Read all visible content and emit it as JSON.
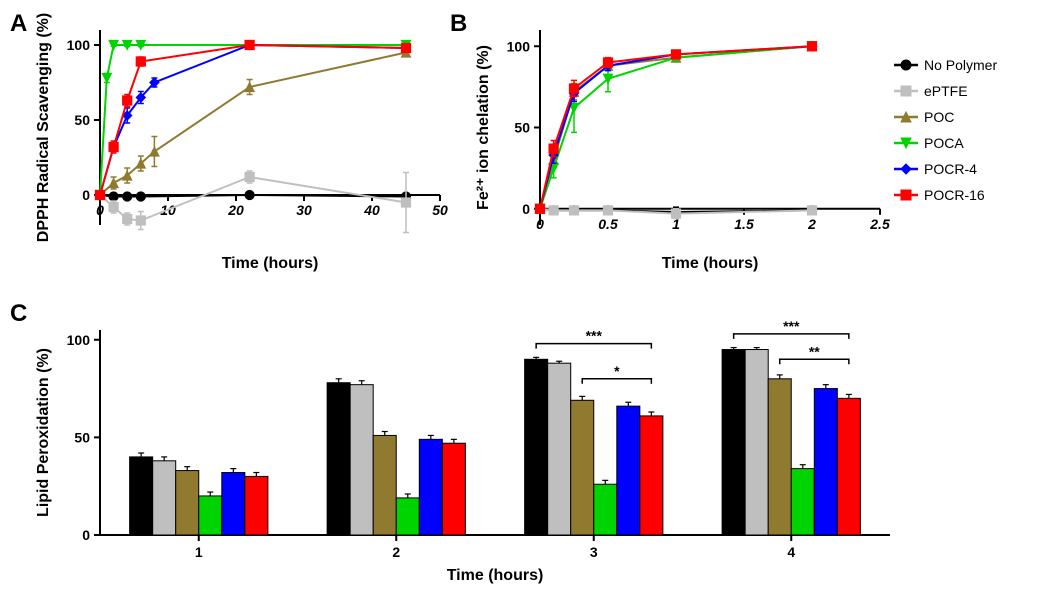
{
  "legend": {
    "items": [
      {
        "label": "No Polymer",
        "color": "#000000",
        "marker": "circle"
      },
      {
        "label": "ePTFE",
        "color": "#bfbfbf",
        "marker": "square"
      },
      {
        "label": "POC",
        "color": "#8f7a2f",
        "marker": "triangle-up"
      },
      {
        "label": "POCA",
        "color": "#00d400",
        "marker": "triangle-down"
      },
      {
        "label": "POCR-4",
        "color": "#0000ff",
        "marker": "diamond"
      },
      {
        "label": "POCR-16",
        "color": "#ff0000",
        "marker": "square"
      }
    ],
    "fontsize": 14
  },
  "panelA": {
    "label": "A",
    "type": "line",
    "title": "",
    "xlabel": "Time (hours)",
    "ylabel": "DPPH Radical Scavenging (%)",
    "xlim": [
      0,
      50
    ],
    "ylim": [
      -20,
      110
    ],
    "xticks": [
      0,
      10,
      20,
      30,
      40,
      50
    ],
    "yticks": [
      0,
      50,
      100
    ],
    "grid": false,
    "line_width": 2,
    "marker_size": 6,
    "background_color": "#ffffff",
    "series": [
      {
        "name": "No Polymer",
        "color": "#000000",
        "marker": "circle",
        "x": [
          0,
          2,
          4,
          6,
          22,
          45
        ],
        "y": [
          0,
          -1,
          -1,
          -1,
          0,
          -1
        ],
        "err": [
          0,
          1,
          1,
          1,
          1,
          2
        ]
      },
      {
        "name": "ePTFE",
        "color": "#bfbfbf",
        "marker": "square",
        "x": [
          0,
          2,
          4,
          6,
          22,
          45
        ],
        "y": [
          0,
          -8,
          -16,
          -17,
          12,
          -5
        ],
        "err": [
          0,
          4,
          4,
          6,
          4,
          20
        ]
      },
      {
        "name": "POC",
        "color": "#8f7a2f",
        "marker": "triangle-up",
        "x": [
          0,
          2,
          4,
          6,
          8,
          22,
          45
        ],
        "y": [
          0,
          8,
          13,
          21,
          29,
          72,
          95
        ],
        "err": [
          0,
          4,
          5,
          5,
          10,
          5,
          2
        ]
      },
      {
        "name": "POCA",
        "color": "#00d400",
        "marker": "triangle-down",
        "x": [
          0,
          1,
          2,
          4,
          6,
          22,
          45
        ],
        "y": [
          0,
          78,
          100,
          100,
          100,
          100,
          100
        ],
        "err": [
          0,
          3,
          1,
          1,
          1,
          1,
          1
        ]
      },
      {
        "name": "POCR-4",
        "color": "#0000ff",
        "marker": "diamond",
        "x": [
          0,
          2,
          4,
          6,
          8,
          22,
          45
        ],
        "y": [
          0,
          32,
          53,
          65,
          75,
          100,
          98
        ],
        "err": [
          0,
          3,
          5,
          4,
          3,
          1,
          1
        ]
      },
      {
        "name": "POCR-16",
        "color": "#ff0000",
        "marker": "square",
        "x": [
          0,
          2,
          4,
          6,
          22,
          45
        ],
        "y": [
          0,
          32,
          63,
          89,
          100,
          98
        ],
        "err": [
          0,
          4,
          4,
          3,
          1,
          1
        ]
      }
    ]
  },
  "panelB": {
    "label": "B",
    "type": "line",
    "title": "",
    "xlabel": "Time (hours)",
    "ylabel": "Fe²⁺ ion chelation (%)",
    "ylabel_sup": "2+",
    "xlim": [
      0,
      2.5
    ],
    "ylim": [
      -10,
      110
    ],
    "xticks": [
      0,
      0.5,
      1.0,
      1.5,
      2.0,
      2.5
    ],
    "yticks": [
      0,
      50,
      100
    ],
    "grid": false,
    "line_width": 2,
    "marker_size": 6,
    "background_color": "#ffffff",
    "series": [
      {
        "name": "No Polymer",
        "color": "#000000",
        "marker": "circle",
        "x": [
          0,
          0.1,
          0.25,
          0.5,
          1.0,
          2.0
        ],
        "y": [
          0,
          -1,
          -1,
          -1,
          -2,
          -1
        ],
        "err": [
          0,
          1,
          1,
          1,
          3,
          2
        ]
      },
      {
        "name": "ePTFE",
        "color": "#bfbfbf",
        "marker": "square",
        "x": [
          0,
          0.1,
          0.25,
          0.5,
          1.0,
          2.0
        ],
        "y": [
          0,
          -1,
          -1,
          -1,
          -3,
          -1
        ],
        "err": [
          0,
          1,
          1,
          1,
          3,
          2
        ]
      },
      {
        "name": "POC",
        "color": "#8f7a2f",
        "marker": "triangle-up",
        "x": [
          0,
          0.1,
          0.25,
          0.5,
          1.0,
          2.0
        ],
        "y": [
          0,
          30,
          72,
          88,
          93,
          100
        ],
        "err": [
          0,
          5,
          5,
          3,
          2,
          1
        ]
      },
      {
        "name": "POCA",
        "color": "#00d400",
        "marker": "triangle-down",
        "x": [
          0,
          0.1,
          0.25,
          0.5,
          1.0,
          2.0
        ],
        "y": [
          0,
          25,
          62,
          80,
          93,
          100
        ],
        "err": [
          0,
          6,
          15,
          8,
          2,
          1
        ]
      },
      {
        "name": "POCR-4",
        "color": "#0000ff",
        "marker": "diamond",
        "x": [
          0,
          0.1,
          0.25,
          0.5,
          1.0,
          2.0
        ],
        "y": [
          0,
          33,
          71,
          88,
          95,
          100
        ],
        "err": [
          0,
          5,
          5,
          3,
          2,
          1
        ]
      },
      {
        "name": "POCR-16",
        "color": "#ff0000",
        "marker": "square",
        "x": [
          0,
          0.1,
          0.25,
          0.5,
          1.0,
          2.0
        ],
        "y": [
          0,
          37,
          74,
          90,
          95,
          100
        ],
        "err": [
          0,
          5,
          5,
          3,
          2,
          1
        ]
      }
    ]
  },
  "panelC": {
    "label": "C",
    "type": "bar",
    "title": "",
    "xlabel": "Time (hours)",
    "ylabel": "Lipid Peroxidation (%)",
    "categories": [
      "1",
      "2",
      "3",
      "4"
    ],
    "ylim": [
      0,
      105
    ],
    "yticks": [
      0,
      50,
      100
    ],
    "grid": false,
    "background_color": "#ffffff",
    "bar_group_gap": 0.3,
    "bar_border_color": "#000000",
    "bar_line_width": 1,
    "series": [
      {
        "name": "No Polymer",
        "color": "#000000",
        "values": [
          40,
          78,
          90,
          95
        ],
        "err": [
          2,
          2,
          1,
          1
        ]
      },
      {
        "name": "ePTFE",
        "color": "#bfbfbf",
        "values": [
          38,
          77,
          88,
          95
        ],
        "err": [
          2,
          2,
          1,
          1
        ]
      },
      {
        "name": "POC",
        "color": "#8f7a2f",
        "values": [
          33,
          51,
          69,
          80
        ],
        "err": [
          2,
          2,
          2,
          2
        ]
      },
      {
        "name": "POCA",
        "color": "#00d400",
        "values": [
          20,
          19,
          26,
          34
        ],
        "err": [
          2,
          2,
          2,
          2
        ]
      },
      {
        "name": "POCR-4",
        "color": "#0000ff",
        "values": [
          32,
          49,
          66,
          75
        ],
        "err": [
          2,
          2,
          2,
          2
        ]
      },
      {
        "name": "POCR-16",
        "color": "#ff0000",
        "values": [
          30,
          47,
          61,
          70
        ],
        "err": [
          2,
          2,
          2,
          2
        ]
      }
    ],
    "significance": [
      {
        "group": 2,
        "from": 0,
        "to": 5,
        "y": 98,
        "label": "***"
      },
      {
        "group": 2,
        "from": 2,
        "to": 5,
        "y": 80,
        "label": "*"
      },
      {
        "group": 3,
        "from": 0,
        "to": 5,
        "y": 103,
        "label": "***"
      },
      {
        "group": 3,
        "from": 2,
        "to": 5,
        "y": 90,
        "label": "**"
      }
    ]
  }
}
